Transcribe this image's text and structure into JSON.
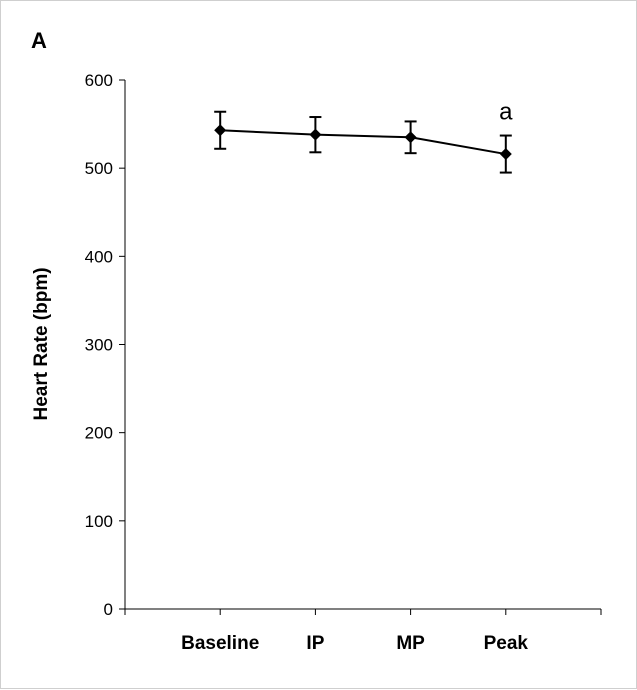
{
  "chart_data": {
    "type": "line",
    "panel_label": "A",
    "ylabel": "Heart Rate (bpm)",
    "xlabel": "",
    "ylim": [
      0,
      600
    ],
    "yticks": [
      0,
      100,
      200,
      300,
      400,
      500,
      600
    ],
    "categories": [
      "Baseline",
      "IP",
      "MP",
      "Peak"
    ],
    "series": [
      {
        "values": [
          543,
          538,
          535,
          516
        ],
        "errors": [
          21,
          20,
          18,
          21
        ],
        "color": "#000000"
      }
    ],
    "annotations": [
      {
        "category": "Peak",
        "text": "a"
      }
    ],
    "grid": false
  }
}
